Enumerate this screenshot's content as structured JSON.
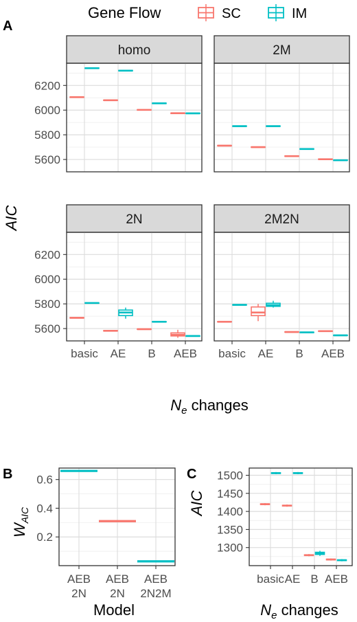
{
  "legend": {
    "title": "Gene Flow",
    "items": [
      {
        "label": "SC",
        "color": "#F8766D"
      },
      {
        "label": "IM",
        "color": "#00BFC4"
      }
    ]
  },
  "panel_letters": {
    "A": "A",
    "B": "B",
    "C": "C"
  },
  "axis_text": {
    "A_ylabel": "AIC",
    "A_xlabel_main": "N",
    "A_xlabel_sub": "e",
    "A_xlabel_rest": " changes",
    "B_ylabel_main": "W",
    "B_ylabel_sub": "AIC",
    "B_xlabel": "Model",
    "C_ylabel": "AIC",
    "C_xlabel_main": "N",
    "C_xlabel_sub": "e",
    "C_xlabel_rest": " changes"
  },
  "chart_data": [
    {
      "type": "box",
      "panel": "A",
      "facets": [
        "homo",
        "2M",
        "2N",
        "2M2N"
      ],
      "categories": [
        "basic",
        "AE",
        "B",
        "AEB"
      ],
      "ylim": [
        5500,
        6380
      ],
      "yticks": [
        5600,
        5800,
        6000,
        6200
      ],
      "grid": true,
      "legend_position": "top",
      "series": [
        {
          "name": "SC",
          "color": "#F8766D",
          "boxes": {
            "homo": [
              [
                6100,
                6103,
                6105,
                6107,
                6110
              ],
              [
                6075,
                6078,
                6080,
                6082,
                6085
              ],
              [
                5997,
                6000,
                6002,
                6004,
                6007
              ],
              [
                5970,
                5972,
                5975,
                5977,
                5980
              ]
            ],
            "2M": [
              [
                5707,
                5710,
                5712,
                5714,
                5717
              ],
              [
                5695,
                5698,
                5700,
                5702,
                5705
              ],
              [
                5622,
                5625,
                5627,
                5629,
                5632
              ],
              [
                5597,
                5600,
                5602,
                5604,
                5607
              ]
            ],
            "2N": [
              [
                5682,
                5685,
                5687,
                5689,
                5692
              ],
              [
                5577,
                5580,
                5582,
                5584,
                5587
              ],
              [
                5590,
                5593,
                5595,
                5597,
                5600
              ],
              [
                5525,
                5540,
                5550,
                5565,
                5590
              ]
            ],
            "2M2N": [
              [
                5650,
                5653,
                5655,
                5657,
                5660
              ],
              [
                5660,
                5705,
                5730,
                5775,
                5800
              ],
              [
                5568,
                5570,
                5572,
                5574,
                5576
              ],
              [
                5575,
                5577,
                5579,
                5581,
                5583
              ]
            ]
          }
        },
        {
          "name": "IM",
          "color": "#00BFC4",
          "boxes": {
            "homo": [
              [
                6335,
                6338,
                6340,
                6342,
                6345
              ],
              [
                6315,
                6318,
                6320,
                6322,
                6325
              ],
              [
                6050,
                6053,
                6055,
                6057,
                6060
              ],
              [
                5970,
                5972,
                5974,
                5976,
                5978
              ]
            ],
            "2M": [
              [
                5865,
                5868,
                5870,
                5872,
                5875
              ],
              [
                5865,
                5868,
                5870,
                5872,
                5875
              ],
              [
                5680,
                5683,
                5685,
                5687,
                5690
              ],
              [
                5590,
                5592,
                5594,
                5596,
                5598
              ]
            ],
            "2N": [
              [
                5802,
                5805,
                5807,
                5809,
                5812
              ],
              [
                5680,
                5705,
                5730,
                5750,
                5770
              ],
              [
                5650,
                5653,
                5655,
                5657,
                5660
              ],
              [
                5535,
                5537,
                5540,
                5542,
                5545
              ]
            ],
            "2M2N": [
              [
                5787,
                5790,
                5792,
                5794,
                5797
              ],
              [
                5770,
                5780,
                5790,
                5805,
                5825
              ],
              [
                5565,
                5567,
                5569,
                5571,
                5573
              ],
              [
                5540,
                5543,
                5545,
                5547,
                5550
              ]
            ]
          }
        }
      ]
    },
    {
      "type": "box",
      "panel": "B",
      "categories": [
        [
          "AEB",
          "2N"
        ],
        [
          "AEB",
          "2N"
        ],
        [
          "AEB",
          "2N2M"
        ]
      ],
      "ylim": [
        0.0,
        0.68
      ],
      "yticks": [
        0.2,
        0.4,
        0.6
      ],
      "grid": true,
      "boxes": [
        {
          "value": 0.66,
          "color": "#00BFC4"
        },
        {
          "value": 0.31,
          "color": "#F8766D"
        },
        {
          "value": 0.03,
          "color": "#00BFC4"
        }
      ]
    },
    {
      "type": "box",
      "panel": "C",
      "categories": [
        "basic",
        "AE",
        "B",
        "AEB"
      ],
      "ylim": [
        1250,
        1520
      ],
      "yticks": [
        1300,
        1350,
        1400,
        1450,
        1500
      ],
      "grid": true,
      "series": [
        {
          "name": "SC",
          "color": "#F8766D",
          "boxes": [
            [
              1417,
              1419,
              1420,
              1421,
              1423
            ],
            [
              1413,
              1415,
              1416,
              1417,
              1419
            ],
            [
              1276,
              1278,
              1279,
              1280,
              1282
            ],
            [
              1264,
              1266,
              1267,
              1268,
              1270
            ]
          ]
        },
        {
          "name": "IM",
          "color": "#00BFC4",
          "boxes": [
            [
              1503,
              1505,
              1506,
              1507,
              1509
            ],
            [
              1503,
              1505,
              1506,
              1507,
              1509
            ],
            [
              1277,
              1281,
              1284,
              1287,
              1291
            ],
            [
              1262,
              1264,
              1265,
              1266,
              1268
            ]
          ]
        }
      ]
    }
  ]
}
